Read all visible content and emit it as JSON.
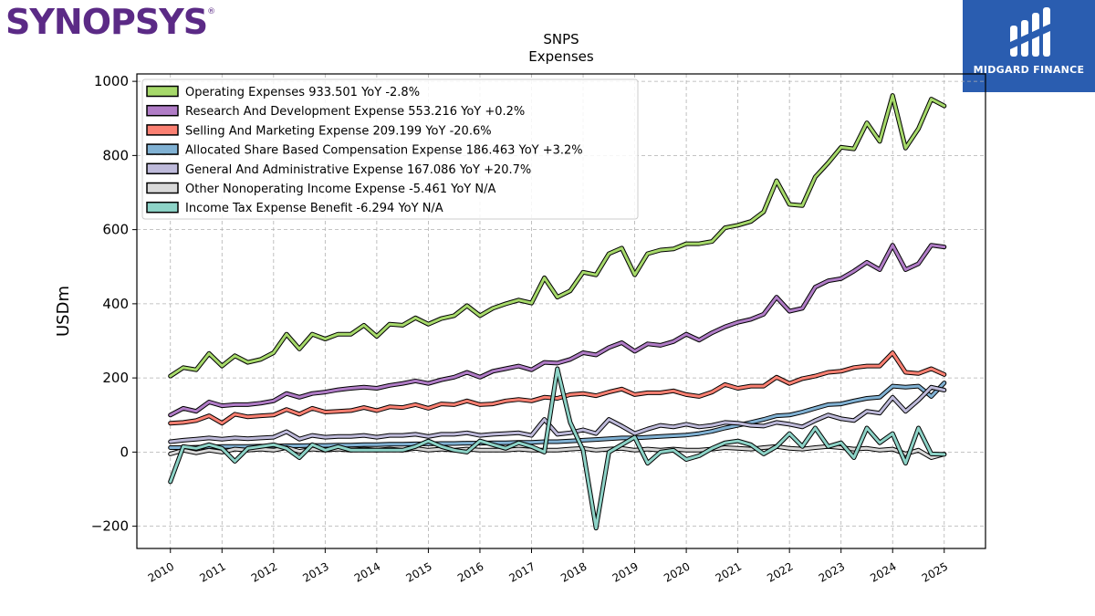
{
  "branding": {
    "left_logo": "SYNOPSYS",
    "right_logo": "MIDGARD FINANCE"
  },
  "colors": {
    "operating": "#a6d96a",
    "rnd": "#b07cc6",
    "sales": "#fb8072",
    "sbc": "#80b1d3",
    "ga": "#bebada",
    "other": "#d9d9d9",
    "tax": "#8dd3c7",
    "logo_purple": "#5b2a86",
    "logo_blue": "#2a5db0"
  },
  "chart_data": {
    "type": "line",
    "title": "SNPS",
    "subtitle": "Expenses",
    "ylabel": "USDm",
    "xlabel": "",
    "ylim": [
      -260,
      1020
    ],
    "xlim": [
      2009.35,
      2025.8
    ],
    "yticks": [
      -200,
      0,
      200,
      400,
      600,
      800,
      1000
    ],
    "yticklabels": [
      "−200",
      "0",
      "200",
      "400",
      "600",
      "800",
      "1000"
    ],
    "xticks": [
      2010,
      2011,
      2012,
      2013,
      2014,
      2015,
      2016,
      2017,
      2018,
      2019,
      2020,
      2021,
      2022,
      2023,
      2024,
      2025
    ],
    "grid": true,
    "legend_position": "top-left",
    "x": [
      2010.0,
      2010.25,
      2010.5,
      2010.75,
      2011.0,
      2011.25,
      2011.5,
      2011.75,
      2012.0,
      2012.25,
      2012.5,
      2012.75,
      2013.0,
      2013.25,
      2013.5,
      2013.75,
      2014.0,
      2014.25,
      2014.5,
      2014.75,
      2015.0,
      2015.25,
      2015.5,
      2015.75,
      2016.0,
      2016.25,
      2016.5,
      2016.75,
      2017.0,
      2017.25,
      2017.5,
      2017.75,
      2018.0,
      2018.25,
      2018.5,
      2018.75,
      2019.0,
      2019.25,
      2019.5,
      2019.75,
      2020.0,
      2020.25,
      2020.5,
      2020.75,
      2021.0,
      2021.25,
      2021.5,
      2021.75,
      2022.0,
      2022.25,
      2022.5,
      2022.75,
      2023.0,
      2023.25,
      2023.5,
      2023.75,
      2024.0,
      2024.25,
      2024.5,
      2024.75,
      2025.0
    ],
    "series": [
      {
        "key": "operating",
        "name": "Operating Expenses",
        "legend": "Operating Expenses  933.501 YoY -2.8%",
        "values": [
          205,
          228,
          222,
          266,
          232,
          260,
          242,
          250,
          268,
          318,
          278,
          318,
          305,
          318,
          318,
          342,
          312,
          345,
          342,
          362,
          345,
          360,
          368,
          395,
          368,
          388,
          400,
          410,
          402,
          470,
          418,
          435,
          485,
          478,
          535,
          550,
          478,
          535,
          545,
          548,
          562,
          562,
          568,
          605,
          612,
          622,
          648,
          732,
          668,
          665,
          742,
          780,
          822,
          818,
          888,
          838,
          962,
          820,
          872,
          952,
          933.5
        ]
      },
      {
        "key": "rnd",
        "name": "Research And Development Expense",
        "legend": "Research And Development Expense  553.216 YoY +0.2%",
        "values": [
          100,
          118,
          110,
          135,
          125,
          128,
          128,
          132,
          138,
          158,
          148,
          158,
          162,
          168,
          172,
          175,
          172,
          180,
          185,
          192,
          185,
          195,
          202,
          215,
          202,
          218,
          225,
          232,
          222,
          242,
          240,
          250,
          268,
          262,
          282,
          295,
          272,
          292,
          288,
          298,
          318,
          302,
          322,
          338,
          350,
          358,
          372,
          418,
          380,
          388,
          445,
          462,
          468,
          488,
          512,
          492,
          558,
          492,
          508,
          558,
          553.2
        ]
      },
      {
        "key": "sales",
        "name": "Selling And Marketing Expense",
        "legend": "Selling And Marketing Expense  209.199 YoY -20.6%",
        "values": [
          78,
          80,
          85,
          98,
          78,
          102,
          95,
          98,
          100,
          115,
          102,
          118,
          108,
          110,
          112,
          120,
          112,
          122,
          120,
          128,
          118,
          130,
          128,
          138,
          128,
          130,
          138,
          142,
          138,
          148,
          145,
          155,
          158,
          152,
          162,
          170,
          155,
          160,
          160,
          165,
          155,
          150,
          162,
          182,
          172,
          178,
          178,
          202,
          185,
          198,
          205,
          215,
          218,
          228,
          232,
          232,
          268,
          215,
          212,
          225,
          209.2
        ]
      },
      {
        "key": "sbc",
        "name": "Allocated Share Based Compensation Expense",
        "legend": "Allocated Share Based Compensation Expense  186.463 YoY +3.2%",
        "values": [
          12,
          12,
          13,
          14,
          15,
          15,
          15,
          16,
          16,
          17,
          17,
          18,
          18,
          19,
          19,
          20,
          20,
          21,
          21,
          22,
          22,
          23,
          23,
          24,
          24,
          25,
          25,
          26,
          26,
          28,
          28,
          30,
          32,
          34,
          36,
          38,
          38,
          40,
          42,
          44,
          46,
          50,
          56,
          65,
          72,
          80,
          88,
          98,
          100,
          108,
          118,
          128,
          130,
          138,
          145,
          148,
          178,
          175,
          178,
          150,
          186.5
        ]
      },
      {
        "key": "ga",
        "name": "General And Administrative Expense",
        "legend": "General And Administrative Expense  167.086 YoY +20.7%",
        "values": [
          28,
          32,
          35,
          38,
          35,
          38,
          36,
          38,
          40,
          55,
          35,
          45,
          40,
          42,
          42,
          45,
          40,
          45,
          45,
          48,
          42,
          48,
          48,
          52,
          45,
          48,
          50,
          52,
          45,
          88,
          48,
          52,
          60,
          50,
          88,
          70,
          50,
          62,
          72,
          68,
          75,
          68,
          72,
          80,
          78,
          72,
          70,
          80,
          75,
          68,
          85,
          100,
          90,
          85,
          110,
          105,
          148,
          110,
          140,
          175,
          167.1
        ]
      },
      {
        "key": "other",
        "name": "Other Nonoperating Income Expense",
        "legend": "Other Nonoperating Income Expense  -5.461 YoY N/A",
        "values": [
          -5,
          5,
          -2,
          5,
          0,
          8,
          5,
          8,
          5,
          12,
          2,
          8,
          5,
          8,
          5,
          8,
          5,
          8,
          5,
          10,
          5,
          8,
          5,
          8,
          5,
          5,
          5,
          8,
          5,
          5,
          5,
          8,
          10,
          5,
          8,
          10,
          5,
          8,
          5,
          8,
          5,
          5,
          8,
          12,
          10,
          8,
          12,
          15,
          10,
          8,
          12,
          15,
          12,
          8,
          10,
          5,
          8,
          -5,
          5,
          -15,
          -5.5
        ]
      },
      {
        "key": "tax",
        "name": "Income Tax Expense Benefit",
        "legend": "Income Tax Expense Benefit  -6.294 YoY N/A",
        "values": [
          -80,
          15,
          10,
          20,
          10,
          -25,
          10,
          15,
          20,
          10,
          -15,
          20,
          5,
          15,
          5,
          5,
          5,
          5,
          5,
          15,
          30,
          15,
          5,
          0,
          30,
          20,
          10,
          25,
          15,
          0,
          225,
          80,
          5,
          -205,
          0,
          20,
          40,
          -30,
          0,
          5,
          -20,
          -10,
          10,
          25,
          30,
          20,
          -5,
          15,
          50,
          15,
          65,
          15,
          25,
          -15,
          65,
          25,
          50,
          -30,
          65,
          -5,
          -6.3
        ]
      }
    ]
  }
}
